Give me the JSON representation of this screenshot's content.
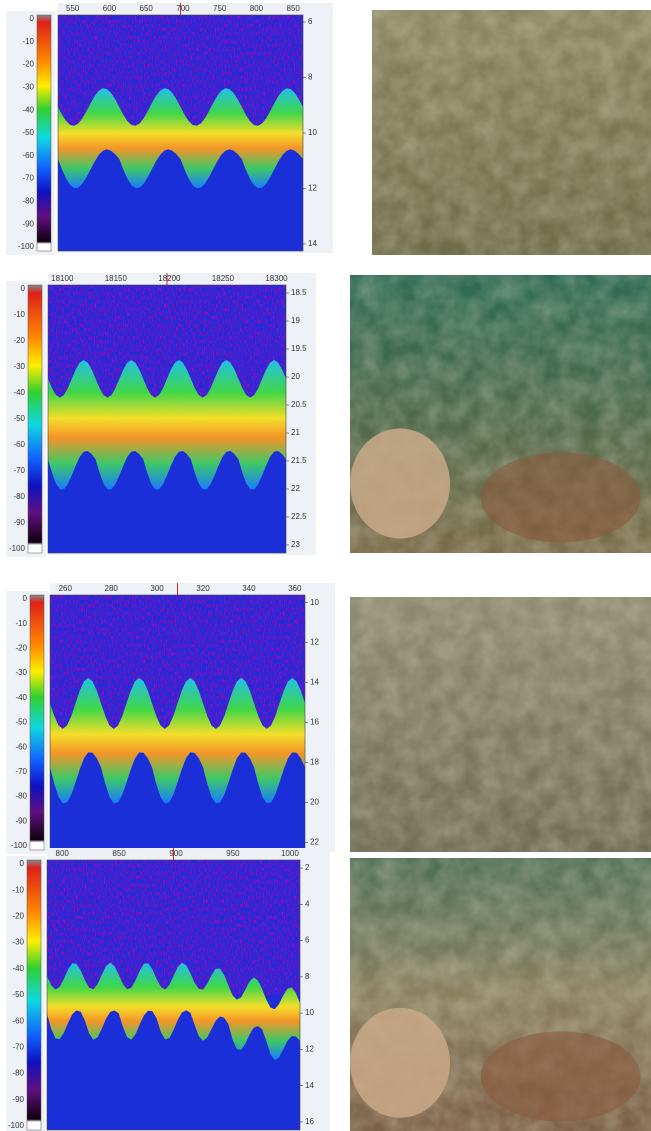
{
  "panels": [
    {
      "colorbar_ticks": [
        0,
        -10,
        -20,
        -30,
        -40,
        -50,
        -60,
        -70,
        -80,
        -90,
        -100
      ],
      "xticks": [
        550,
        600,
        650,
        700,
        750,
        800,
        850
      ],
      "depth_ticks": [
        6,
        8,
        10,
        12,
        14
      ]
    },
    {
      "colorbar_ticks": [
        0,
        -10,
        -20,
        -30,
        -40,
        -50,
        -60,
        -70,
        -80,
        -90,
        -100
      ],
      "xticks": [
        18100,
        18150,
        18200,
        18250,
        18300
      ],
      "depth_ticks": [
        18.5,
        19,
        19.5,
        20,
        20.5,
        21,
        21.5,
        22,
        22.5,
        23
      ]
    },
    {
      "colorbar_ticks": [
        0,
        -10,
        -20,
        -30,
        -40,
        -50,
        -60,
        -70,
        -80,
        -90,
        -100
      ],
      "xticks": [
        260,
        280,
        300,
        320,
        340,
        360
      ],
      "depth_ticks": [
        10,
        12,
        14,
        16,
        18,
        20,
        22
      ]
    },
    {
      "colorbar_ticks": [
        0,
        -10,
        -20,
        -30,
        -40,
        -50,
        -60,
        -70,
        -80,
        -90,
        -100
      ],
      "xticks": [
        800,
        850,
        900,
        950,
        1000
      ],
      "depth_ticks": [
        2,
        4,
        6,
        8,
        10,
        12,
        14,
        16
      ]
    }
  ]
}
